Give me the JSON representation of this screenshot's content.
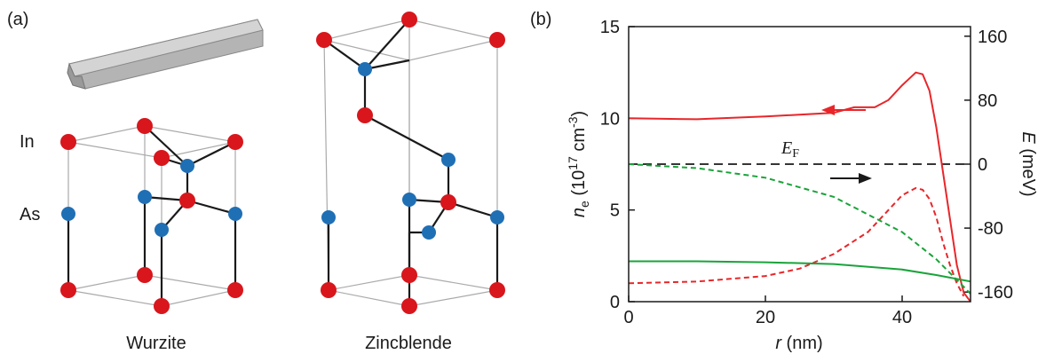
{
  "panel_a": {
    "label": "(a)",
    "atoms": [
      "In",
      "As"
    ],
    "structures": [
      "Wurzite",
      "Zincblende"
    ]
  },
  "chart_data": {
    "type": "line",
    "label": "(b)",
    "x_label": "r",
    "x_unit": " (nm)",
    "y_label": "n",
    "y_label_sub": "e",
    "y_unit_a": " (10",
    "y_unit_sup1": "17",
    "y_unit_b": " cm",
    "y_unit_sup2": "-3",
    "y_unit_c": ")",
    "y2_label": "E",
    "y2_unit": " (meV)",
    "xlim": [
      0,
      50
    ],
    "xticks": [
      0,
      20,
      40
    ],
    "ylim": [
      0,
      15
    ],
    "yticks": [
      0,
      5,
      10,
      15
    ],
    "y2lim": [
      -172,
      172
    ],
    "y2ticks": [
      -160,
      -80,
      0,
      80,
      160
    ],
    "reference_line": {
      "axis": "y2",
      "value": 0,
      "color": "#1a1a1a",
      "label": "E",
      "label_sub": "F"
    },
    "series": [
      {
        "color": "#e8262a",
        "dash": false,
        "x": [
          0,
          10,
          20,
          30,
          33,
          36,
          38,
          40,
          42,
          43,
          44,
          45,
          46,
          47,
          48,
          49,
          50
        ],
        "values": [
          10.0,
          9.95,
          10.1,
          10.3,
          10.6,
          10.6,
          11.0,
          11.8,
          12.5,
          12.4,
          11.5,
          9.5,
          7.0,
          4.5,
          2.0,
          0.5,
          0
        ]
      },
      {
        "color": "#e8262a",
        "dash": true,
        "x": [
          0,
          10,
          20,
          25,
          30,
          35,
          38,
          40,
          42,
          43,
          44,
          45,
          46,
          47,
          48,
          49
        ],
        "values": [
          1.0,
          1.1,
          1.4,
          1.8,
          2.6,
          3.8,
          5.0,
          5.8,
          6.2,
          6.1,
          5.6,
          4.6,
          3.2,
          2.0,
          1.0,
          0.3
        ]
      },
      {
        "color": "#1aa33a",
        "dash": false,
        "x": [
          0,
          10,
          20,
          30,
          40,
          45,
          50
        ],
        "values": [
          2.2,
          2.2,
          2.15,
          2.05,
          1.75,
          1.45,
          1.1
        ]
      },
      {
        "color": "#1aa33a",
        "dash": true,
        "axis": "y2",
        "x": [
          0,
          10,
          20,
          30,
          40,
          45,
          50
        ],
        "values": [
          0,
          -5,
          -17,
          -41,
          -85,
          -119,
          -162
        ]
      }
    ]
  }
}
